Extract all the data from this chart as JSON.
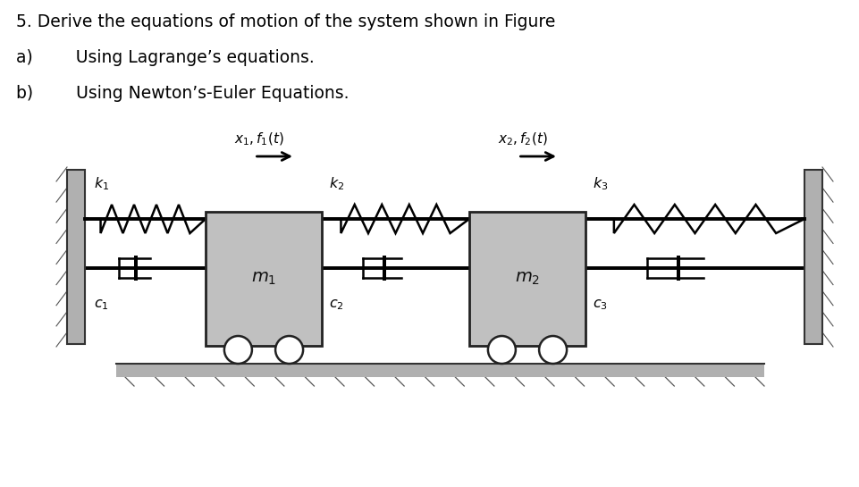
{
  "title_line": "5. Derive the equations of motion of the system shown in Figure",
  "line_a": "a)        Using Lagrange’s equations.",
  "line_b": "b)        Using Newton’s-Euler Equations.",
  "bg_color": "#ffffff",
  "wall_color": "#b0b0b0",
  "mass_color": "#c0c0c0",
  "ground_color": "#b0b0b0",
  "text_color": "#000000",
  "label_k1": "$k_1$",
  "label_k2": "$k_2$",
  "label_k3": "$k_3$",
  "label_m1": "$m_1$",
  "label_m2": "$m_2$",
  "label_c1": "$c_1$",
  "label_c2": "$c_2$",
  "label_c3": "$c_3$",
  "label_x1f1": "$x_1, f_1(t)$",
  "label_x2f2": "$x_2, f_2(t)$"
}
